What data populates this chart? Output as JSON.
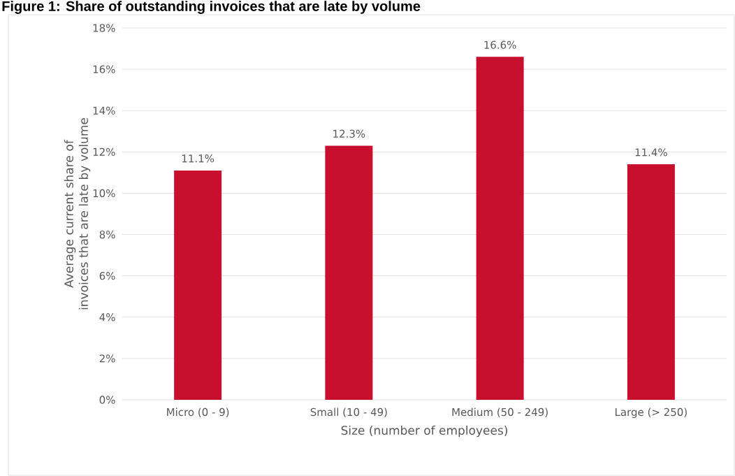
{
  "chart_data": {
    "type": "bar",
    "title": "Figure 1: Share of outstanding invoices that are late by volume",
    "xlabel": "Size (number of employees)",
    "ylabel": "Average current share of invoices that are late by volume",
    "categories": [
      "Micro (0 - 9)",
      "Small (10 - 49)",
      "Medium (50 - 249)",
      "Large (> 250)"
    ],
    "values": [
      11.1,
      12.3,
      16.6,
      11.4
    ],
    "value_labels": [
      "11.1%",
      "12.3%",
      "16.6%",
      "11.4%"
    ],
    "color": "#c8102e",
    "ylim": [
      0,
      18
    ],
    "yticks": [
      {
        "value": 0,
        "label": "0%"
      },
      {
        "value": 2,
        "label": "2%"
      },
      {
        "value": 4,
        "label": "4%"
      },
      {
        "value": 6,
        "label": "6%"
      },
      {
        "value": 8,
        "label": "8%"
      },
      {
        "value": 10,
        "label": "10%"
      },
      {
        "value": 12,
        "label": "12%"
      },
      {
        "value": 14,
        "label": "14%"
      },
      {
        "value": 16,
        "label": "16%"
      },
      {
        "value": 18,
        "label": "18%"
      }
    ],
    "grid": "y"
  }
}
